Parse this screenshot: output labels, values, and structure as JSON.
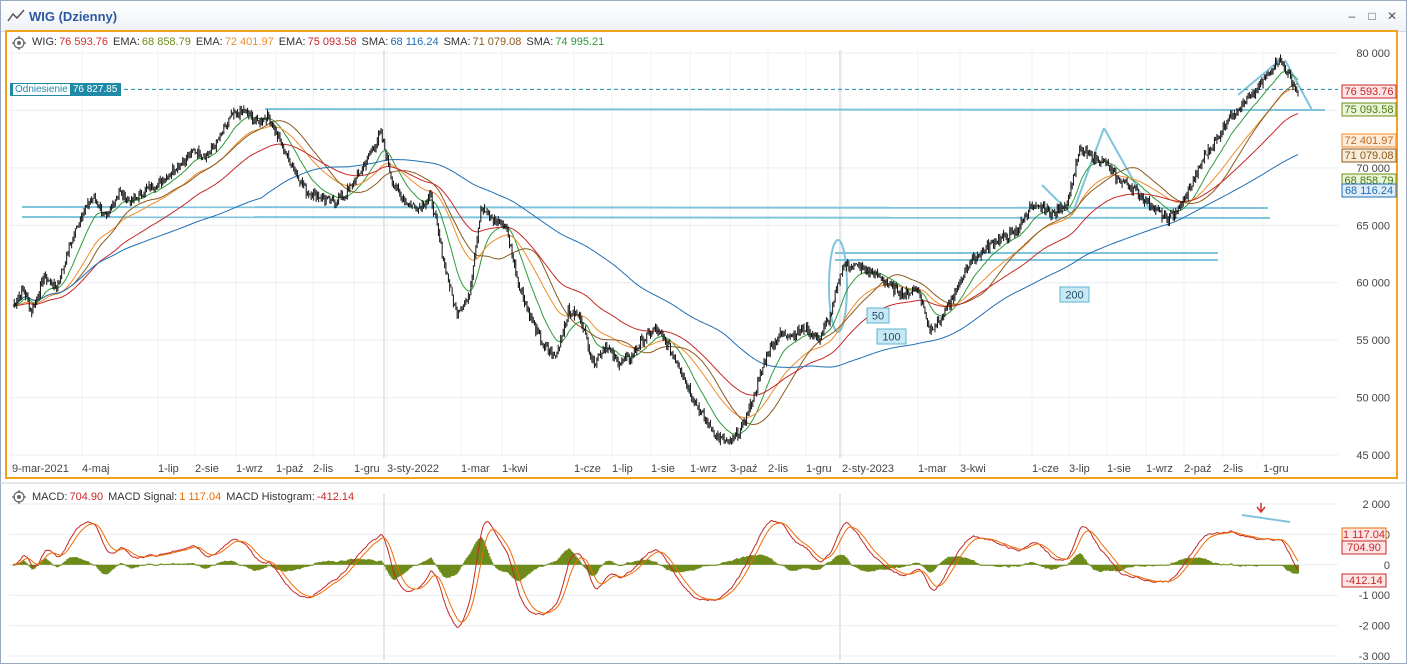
{
  "window": {
    "title": "WIG (Dzienny)",
    "buttons": [
      "–",
      "□",
      "✕"
    ]
  },
  "legend_main": [
    {
      "label": "WIG:",
      "value": "76 593.76",
      "color": "#d32f2f"
    },
    {
      "label": "EMA:",
      "value": "68 858.79",
      "color": "#6d8b1a"
    },
    {
      "label": "EMA:",
      "value": "72 401.97",
      "color": "#ef8c2a"
    },
    {
      "label": "EMA:",
      "value": "75 093.58",
      "color": "#c62828"
    },
    {
      "label": "SMA:",
      "value": "68 116.24",
      "color": "#1f6fb5"
    },
    {
      "label": "SMA:",
      "value": "71 079.08",
      "color": "#8a5a1c"
    },
    {
      "label": "SMA:",
      "value": "74 995.21",
      "color": "#2e9b3a"
    }
  ],
  "reference": {
    "label": "Odniesienie",
    "value": "76 827.85"
  },
  "legend_macd": [
    {
      "label": "MACD:",
      "value": "704.90",
      "color": "#c62828"
    },
    {
      "label": "MACD Signal:",
      "value": "1 117.04",
      "color": "#ef6c00"
    },
    {
      "label": "MACD Histogram:",
      "value": "-412.14",
      "color": "#c62828"
    }
  ],
  "price_tags": [
    {
      "text": "76 593.76",
      "value": 76593.76,
      "bg": "#fde5e5",
      "fg": "#c62828",
      "border": "#c62828"
    },
    {
      "text": "75 093.58",
      "value": 75093.58,
      "bg": "#eaf5d8",
      "fg": "#4a7a12",
      "border": "#6d8b1a"
    },
    {
      "text": "72 401.97",
      "value": 72401.97,
      "bg": "#fdecd9",
      "fg": "#c2691a",
      "border": "#ef8c2a"
    },
    {
      "text": "71 079.08",
      "value": 71079.08,
      "bg": "#f6ecd8",
      "fg": "#8a5a1c",
      "border": "#8a5a1c"
    },
    {
      "text": "68 858.79",
      "value": 68858.79,
      "bg": "#eaf5d8",
      "fg": "#4a7a12",
      "border": "#6d8b1a"
    },
    {
      "text": "68 116.24",
      "value": 68116.24,
      "bg": "#e0ecf8",
      "fg": "#1f6fb5",
      "border": "#1f6fb5"
    }
  ],
  "macd_tags": [
    {
      "text": "1 117.04",
      "value": 1117.04,
      "bg": "#fde5e5",
      "fg": "#c62828",
      "border": "#ef6c00"
    },
    {
      "text": "704.90",
      "value": 704.9,
      "bg": "#fde5e5",
      "fg": "#c62828",
      "border": "#c62828"
    },
    {
      "text": "-412.14",
      "value": -412.14,
      "bg": "#fde5e5",
      "fg": "#c62828",
      "border": "#c62828"
    }
  ],
  "annotations": [
    "50",
    "100",
    "200"
  ],
  "chart_data": [
    {
      "type": "candlestick",
      "title": "WIG (Dzienny)",
      "ylim": [
        45000,
        80000
      ],
      "y_ticks": [
        "45 000",
        "50 000",
        "55 000",
        "60 000",
        "65 000",
        "70 000",
        "75 000",
        "80 000"
      ],
      "x_ticks": [
        "9-mar-2021",
        "4-maj",
        "1-lip",
        "2-sie",
        "1-wrz",
        "1-paź",
        "2-lis",
        "1-gru",
        "3-sty-2022",
        "1-mar",
        "1-kwi",
        "1-cze",
        "1-lip",
        "1-sie",
        "1-wrz",
        "3-paź",
        "2-lis",
        "1-gru",
        "2-sty-2023",
        "1-mar",
        "3-kwi",
        "1-cze",
        "3-lip",
        "1-sie",
        "1-wrz",
        "2-paź",
        "2-lis",
        "1-gru"
      ],
      "close_points": [
        [
          0,
          58000
        ],
        [
          8,
          59500
        ],
        [
          15,
          57500
        ],
        [
          25,
          60500
        ],
        [
          35,
          59500
        ],
        [
          45,
          63000
        ],
        [
          55,
          66000
        ],
        [
          65,
          67500
        ],
        [
          75,
          65500
        ],
        [
          85,
          68000
        ],
        [
          95,
          67000
        ],
        [
          105,
          68000
        ],
        [
          115,
          68500
        ],
        [
          125,
          69500
        ],
        [
          135,
          70500
        ],
        [
          145,
          71500
        ],
        [
          155,
          71000
        ],
        [
          165,
          72500
        ],
        [
          175,
          74500
        ],
        [
          185,
          75000
        ],
        [
          195,
          74000
        ],
        [
          205,
          74500
        ],
        [
          215,
          72000
        ],
        [
          225,
          70000
        ],
        [
          235,
          68000
        ],
        [
          245,
          67500
        ],
        [
          255,
          67000
        ],
        [
          265,
          67500
        ],
        [
          275,
          69000
        ],
        [
          285,
          71000
        ],
        [
          295,
          73000
        ],
        [
          305,
          68500
        ],
        [
          315,
          67000
        ],
        [
          325,
          66500
        ],
        [
          335,
          67500
        ],
        [
          345,
          62000
        ],
        [
          355,
          57500
        ],
        [
          365,
          58500
        ],
        [
          375,
          66500
        ],
        [
          385,
          65500
        ],
        [
          395,
          65000
        ],
        [
          405,
          60000
        ],
        [
          415,
          57000
        ],
        [
          425,
          54500
        ],
        [
          435,
          53500
        ],
        [
          445,
          57500
        ],
        [
          455,
          57000
        ],
        [
          465,
          53000
        ],
        [
          475,
          54500
        ],
        [
          485,
          53000
        ],
        [
          495,
          53500
        ],
        [
          505,
          55000
        ],
        [
          515,
          56000
        ],
        [
          525,
          54500
        ],
        [
          535,
          52500
        ],
        [
          545,
          50000
        ],
        [
          555,
          48000
        ],
        [
          565,
          46500
        ],
        [
          575,
          46000
        ],
        [
          585,
          47500
        ],
        [
          595,
          50500
        ],
        [
          605,
          54000
        ],
        [
          615,
          55500
        ],
        [
          625,
          55500
        ],
        [
          635,
          56000
        ],
        [
          645,
          55000
        ],
        [
          655,
          57000
        ],
        [
          665,
          61500
        ],
        [
          675,
          61500
        ],
        [
          685,
          61000
        ],
        [
          695,
          60500
        ],
        [
          705,
          59500
        ],
        [
          715,
          59000
        ],
        [
          725,
          59500
        ],
        [
          735,
          56000
        ],
        [
          745,
          57000
        ],
        [
          755,
          59000
        ],
        [
          765,
          61500
        ],
        [
          775,
          62500
        ],
        [
          785,
          63500
        ],
        [
          795,
          64000
        ],
        [
          805,
          64500
        ],
        [
          815,
          66500
        ],
        [
          825,
          66500
        ],
        [
          835,
          66000
        ],
        [
          845,
          67000
        ],
        [
          855,
          71500
        ],
        [
          865,
          71000
        ],
        [
          875,
          70500
        ],
        [
          885,
          69000
        ],
        [
          895,
          68500
        ],
        [
          905,
          67500
        ],
        [
          915,
          66500
        ],
        [
          925,
          65500
        ],
        [
          935,
          66500
        ],
        [
          945,
          68500
        ],
        [
          955,
          71000
        ],
        [
          965,
          72500
        ],
        [
          975,
          74500
        ],
        [
          985,
          75500
        ],
        [
          995,
          76500
        ],
        [
          1005,
          78000
        ],
        [
          1015,
          79500
        ],
        [
          1025,
          77500
        ],
        [
          1030,
          76593.76
        ]
      ],
      "overlay_series": [
        {
          "name": "EMA",
          "value": 68858.79,
          "color": "#6d8b1a"
        },
        {
          "name": "EMA",
          "value": 72401.97,
          "color": "#ef8c2a"
        },
        {
          "name": "EMA",
          "value": 75093.58,
          "color": "#c62828"
        },
        {
          "name": "SMA",
          "value": 68116.24,
          "color": "#1f6fb5"
        },
        {
          "name": "SMA",
          "value": 71079.08,
          "color": "#8a5a1c"
        },
        {
          "name": "SMA",
          "value": 74995.21,
          "color": "#2e9b3a"
        }
      ],
      "reference_level": 76827.85,
      "grid": true
    },
    {
      "type": "line+bar",
      "title": "MACD",
      "ylim": [
        -3000,
        2000
      ],
      "y_ticks": [
        "2 000",
        "1 000",
        "0",
        "-1 000",
        "-2 000",
        "-3 000"
      ],
      "series": [
        {
          "name": "MACD",
          "value": 704.9,
          "color": "#c62828"
        },
        {
          "name": "MACD Signal",
          "value": 1117.04,
          "color": "#ef6c00"
        },
        {
          "name": "MACD Histogram",
          "value": -412.14,
          "color": "#6d8b1a"
        }
      ]
    }
  ]
}
